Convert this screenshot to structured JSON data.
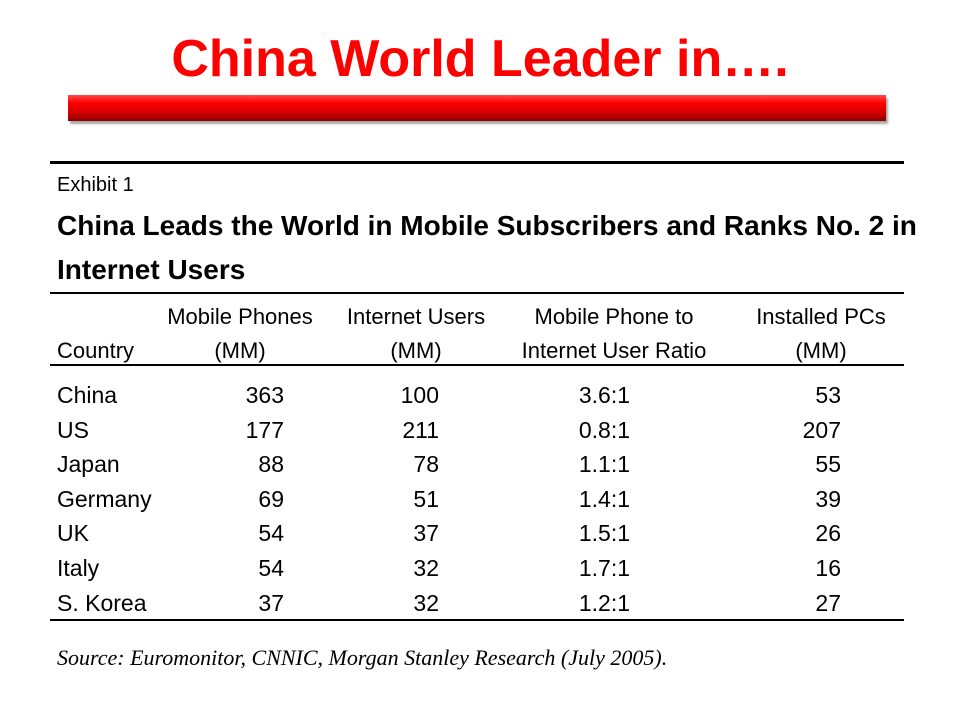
{
  "slide": {
    "title": "China World Leader in…."
  },
  "exhibit": {
    "label": "Exhibit 1",
    "title": "China Leads the World in Mobile Subscribers and Ranks No. 2 in Internet Users"
  },
  "table": {
    "headers": {
      "country": [
        "",
        "Country"
      ],
      "mobile": [
        "Mobile Phones",
        "(MM)"
      ],
      "internet": [
        "Internet Users",
        "(MM)"
      ],
      "ratio": [
        "Mobile Phone to",
        "Internet User Ratio"
      ],
      "pcs": [
        "Installed PCs",
        "(MM)"
      ]
    },
    "rows": [
      {
        "country": "China",
        "mobile": "363",
        "internet": "100",
        "ratio": "3.6:1",
        "pcs": "53"
      },
      {
        "country": "US",
        "mobile": "177",
        "internet": "211",
        "ratio": "0.8:1",
        "pcs": "207"
      },
      {
        "country": "Japan",
        "mobile": "88",
        "internet": "78",
        "ratio": "1.1:1",
        "pcs": "55"
      },
      {
        "country": "Germany",
        "mobile": "69",
        "internet": "51",
        "ratio": "1.4:1",
        "pcs": "39"
      },
      {
        "country": "UK",
        "mobile": "54",
        "internet": "37",
        "ratio": "1.5:1",
        "pcs": "26"
      },
      {
        "country": "Italy",
        "mobile": "54",
        "internet": "32",
        "ratio": "1.7:1",
        "pcs": "16"
      },
      {
        "country": "S. Korea",
        "mobile": "37",
        "internet": "32",
        "ratio": "1.2:1",
        "pcs": "27"
      }
    ]
  },
  "source": "Source: Euromonitor, CNNIC, Morgan Stanley Research (July 2005)."
}
